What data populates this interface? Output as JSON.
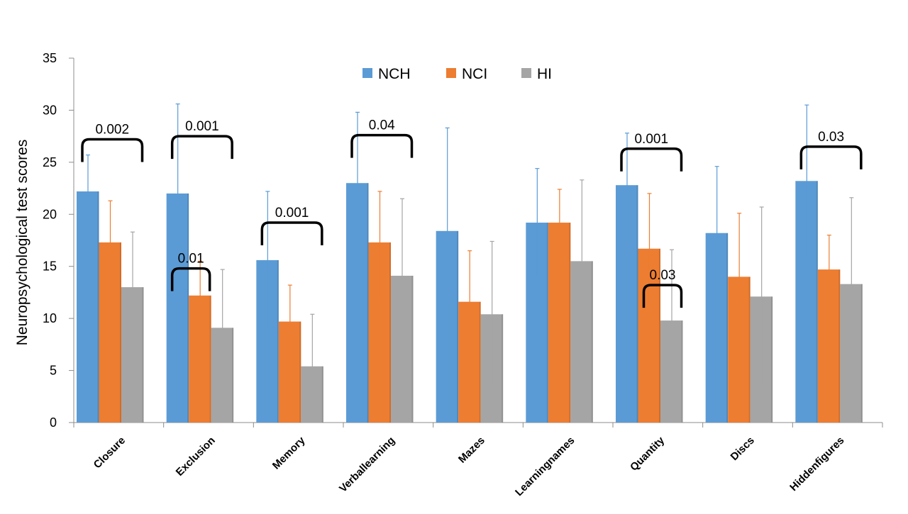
{
  "chart_data": {
    "type": "bar",
    "title": "",
    "xlabel": "",
    "ylabel": "Neuropsychological test scores",
    "ylim": [
      0,
      35
    ],
    "yticks": [
      0,
      5,
      10,
      15,
      20,
      25,
      30,
      35
    ],
    "grid": false,
    "legend_position": "top-center",
    "categories": [
      "Closure",
      "Exclusion",
      "Memory",
      "Verballearning",
      "Mazes",
      "Learningnames",
      "Quantity",
      "Discs",
      "Hiddenfigures"
    ],
    "series": [
      {
        "name": "NCH",
        "color": "#5b9bd5",
        "values": [
          22.2,
          22.0,
          15.6,
          23.0,
          18.4,
          19.2,
          22.8,
          18.2,
          23.2
        ],
        "error": [
          3.5,
          8.6,
          6.6,
          6.8,
          9.9,
          5.2,
          5.0,
          6.4,
          7.3
        ]
      },
      {
        "name": "NCI",
        "color": "#ed7d31",
        "values": [
          17.3,
          12.2,
          9.7,
          17.3,
          11.6,
          19.2,
          16.7,
          14.0,
          14.7
        ],
        "error": [
          4.0,
          3.3,
          3.5,
          4.9,
          4.9,
          3.2,
          5.3,
          6.1,
          3.3
        ]
      },
      {
        "name": "HI",
        "color": "#a5a5a5",
        "values": [
          13.0,
          9.1,
          5.4,
          14.1,
          10.4,
          15.5,
          9.8,
          12.1,
          13.3
        ],
        "error": [
          5.3,
          5.6,
          5.0,
          7.4,
          7.0,
          7.8,
          6.8,
          8.6,
          8.3
        ]
      }
    ],
    "annotations": [
      {
        "category": 0,
        "from_series": 0,
        "to_series": 2,
        "level": 27.2,
        "text": "0.002"
      },
      {
        "category": 1,
        "from_series": 0,
        "to_series": 2,
        "level": 27.5,
        "text": "0.001"
      },
      {
        "category": 1,
        "from_series": 0,
        "to_series": 1,
        "level": 14.8,
        "text": "0.01"
      },
      {
        "category": 2,
        "from_series": 0,
        "to_series": 2,
        "level": 19.2,
        "text": "0.001"
      },
      {
        "category": 3,
        "from_series": 0,
        "to_series": 2,
        "level": 27.6,
        "text": "0.04"
      },
      {
        "category": 6,
        "from_series": 0,
        "to_series": 2,
        "level": 26.3,
        "text": "0.001"
      },
      {
        "category": 6,
        "from_series": 1,
        "to_series": 2,
        "level": 13.2,
        "text": "0.03"
      },
      {
        "category": 8,
        "from_series": 0,
        "to_series": 2,
        "level": 26.5,
        "text": "0.03"
      }
    ]
  }
}
